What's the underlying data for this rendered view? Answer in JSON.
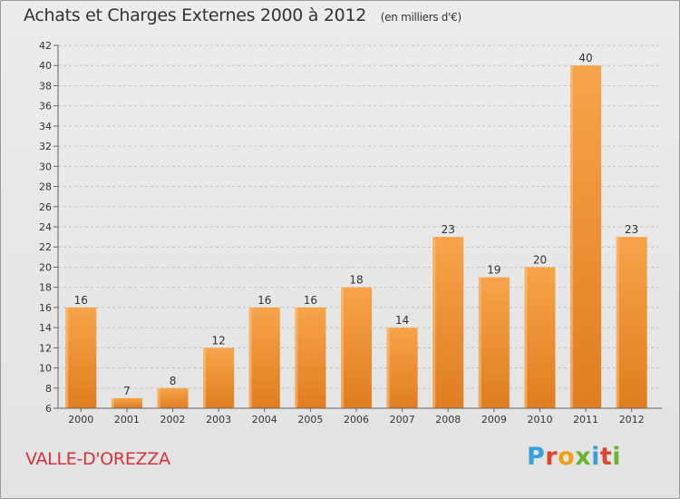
{
  "header": {
    "title": "Achats et Charges Externes 2000 à 2012",
    "unit": "(en milliers d'€)"
  },
  "footer": {
    "commune": "VALLE-D'OREZZA",
    "logo_text": "Proxiti"
  },
  "colors": {
    "bar_light": "#f7a44a",
    "bar_dark": "#e07d20",
    "commune_text": "#d8333c",
    "logo_letters": [
      "#3aa0d8",
      "#e0432f",
      "#f0a018",
      "#6bb52e",
      "#3aa0d8",
      "#e0432f",
      "#6bb52e"
    ]
  },
  "chart_data": {
    "type": "bar",
    "categories": [
      "2000",
      "2001",
      "2002",
      "2003",
      "2004",
      "2005",
      "2006",
      "2007",
      "2008",
      "2009",
      "2010",
      "2011",
      "2012"
    ],
    "values": [
      16,
      7,
      8,
      12,
      16,
      16,
      18,
      14,
      23,
      19,
      20,
      40,
      23
    ],
    "ylim": [
      6,
      42
    ],
    "yticks": [
      6,
      8,
      10,
      12,
      14,
      16,
      18,
      20,
      22,
      24,
      26,
      28,
      30,
      32,
      34,
      36,
      38,
      40,
      42
    ],
    "grid": "horizontal dashed",
    "data_labels": true,
    "xlabel": "",
    "ylabel": ""
  }
}
